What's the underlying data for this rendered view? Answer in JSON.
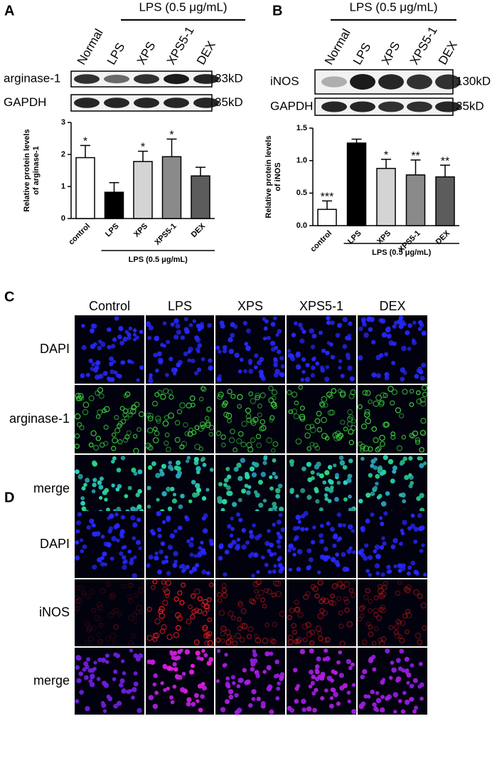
{
  "chart_data": [
    {
      "type": "bar",
      "ylabel": [
        "Relative protein levels",
        "of arginase-1"
      ],
      "categories": [
        "control",
        "LPS",
        "XPS",
        "XPS5-1",
        "DEX"
      ],
      "values": [
        1.9,
        0.82,
        1.78,
        1.93,
        1.33
      ],
      "errors": [
        0.38,
        0.3,
        0.32,
        0.55,
        0.27
      ],
      "significance": [
        "*",
        null,
        "*",
        "*",
        null
      ],
      "colors": [
        "#ffffff",
        "#000000",
        "#d4d4d4",
        "#8a8a8a",
        "#5c5c5c"
      ],
      "group_label": "LPS (0.5 μg/mL)",
      "ylim": [
        0,
        3
      ],
      "yticks": [
        0,
        1,
        2,
        3
      ]
    },
    {
      "type": "bar",
      "ylabel": [
        "Relative protein levels",
        "of iNOS"
      ],
      "categories": [
        "control",
        "LPS",
        "XPS",
        "XPS5-1",
        "DEX"
      ],
      "values": [
        0.25,
        1.27,
        0.88,
        0.78,
        0.75
      ],
      "errors": [
        0.13,
        0.06,
        0.14,
        0.23,
        0.18
      ],
      "significance": [
        "***",
        null,
        "*",
        "**",
        "**"
      ],
      "colors": [
        "#ffffff",
        "#000000",
        "#d4d4d4",
        "#8a8a8a",
        "#5c5c5c"
      ],
      "group_label": "LPS (0.5 μg/mL)",
      "ylim": [
        0,
        1.5
      ],
      "yticks": [
        {
          "value": 0,
          "label": "0.0"
        },
        {
          "value": 0.5,
          "label": "0.5"
        },
        {
          "value": 1,
          "label": "1.0"
        },
        {
          "value": 1.5,
          "label": "1.5"
        }
      ]
    }
  ],
  "blots": [
    {
      "letter": "A",
      "treatment": "LPS (0.5 μg/mL)",
      "lanes": [
        "Normal",
        "LPS",
        "XPS",
        "XPS5-1",
        "DEX"
      ],
      "rows": [
        {
          "label": "arginase-1",
          "size": "33kD"
        },
        {
          "label": "GAPDH",
          "size": "35kD"
        }
      ]
    },
    {
      "letter": "B",
      "treatment": "LPS (0.5 μg/mL)",
      "lanes": [
        "Normal",
        "LPS",
        "XPS",
        "XPS5-1",
        "DEX"
      ],
      "rows": [
        {
          "label": "iNOS",
          "size": "130kD"
        },
        {
          "label": "GAPDH",
          "size": "35kD"
        }
      ]
    }
  ],
  "micrographs": [
    {
      "letter": "C",
      "columns": [
        "Control",
        "LPS",
        "XPS",
        "XPS5-1",
        "DEX"
      ],
      "rows": [
        "DAPI",
        "arginase-1",
        "merge"
      ]
    },
    {
      "letter": "D",
      "rows": [
        "DAPI",
        "iNOS",
        "merge"
      ]
    }
  ]
}
